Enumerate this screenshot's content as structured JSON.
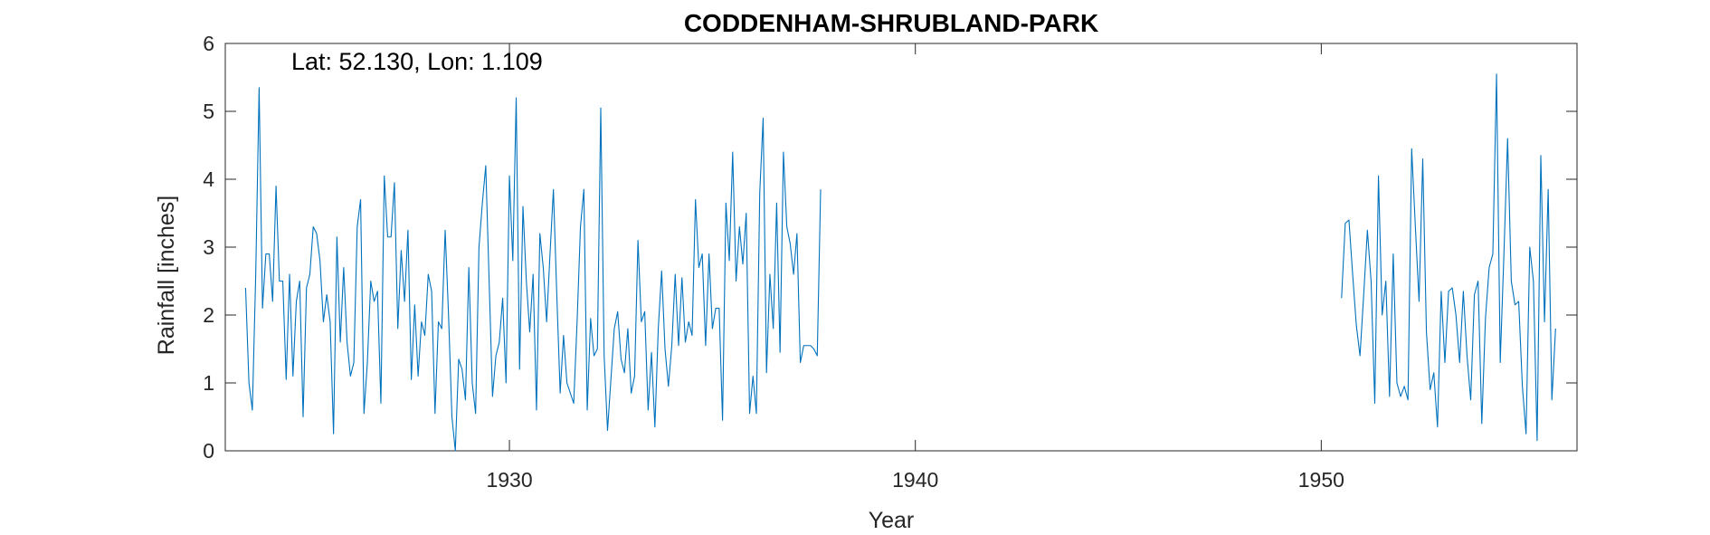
{
  "chart_data": {
    "type": "line",
    "title": "CODDENHAM-SHRUBLAND-PARK",
    "annotation": "Lat: 52.130, Lon: 1.109",
    "xlabel": "Year",
    "ylabel": "Rainfall [inches]",
    "xlim": [
      1923.0,
      1956.3
    ],
    "ylim": [
      0,
      6
    ],
    "xticks": [
      1930,
      1940,
      1950
    ],
    "xtick_labels": [
      "1930",
      "1940",
      "1950"
    ],
    "yticks": [
      0,
      1,
      2,
      3,
      4,
      5,
      6
    ],
    "ytick_labels": [
      "0",
      "1",
      "2",
      "3",
      "4",
      "5",
      "6"
    ],
    "grid": false,
    "line_color": "#0072BD",
    "series": [
      {
        "segments": [
          {
            "x_start": 1923.5,
            "dx": 0.083333,
            "values": [
              2.4,
              1.0,
              0.6,
              2.6,
              5.35,
              2.1,
              2.9,
              2.9,
              2.2,
              3.9,
              2.5,
              2.5,
              1.05,
              2.6,
              1.1,
              2.2,
              2.5,
              0.5,
              2.4,
              2.6,
              3.3,
              3.2,
              2.8,
              1.9,
              2.3,
              1.9,
              0.25,
              3.15,
              1.6,
              2.7,
              1.6,
              1.1,
              1.3,
              3.3,
              3.7,
              0.55,
              1.3,
              2.5,
              2.2,
              2.35,
              0.7,
              4.05,
              3.15,
              3.15,
              3.95,
              1.8,
              2.95,
              2.2,
              3.25,
              1.05,
              2.15,
              1.1,
              1.9,
              1.7,
              2.6,
              2.35,
              0.55,
              1.9,
              1.8,
              3.25,
              2.0,
              0.5,
              0.0,
              1.35,
              1.2,
              0.75,
              2.7,
              1.0,
              0.55,
              3.0,
              3.65,
              4.2,
              2.5,
              0.8,
              1.4,
              1.6,
              2.25,
              1.0,
              4.05,
              2.8,
              5.2,
              1.2,
              3.6,
              2.5,
              1.75,
              2.6,
              0.6,
              3.2,
              2.7,
              1.9,
              2.9,
              3.85,
              2.3,
              0.85,
              1.7,
              1.0,
              0.85,
              0.7,
              1.9,
              3.3,
              3.85,
              0.6,
              1.95,
              1.4,
              1.5,
              5.05,
              1.4,
              0.3,
              1.05,
              1.8,
              2.05,
              1.35,
              1.15,
              1.8,
              0.85,
              1.1,
              3.1,
              1.9,
              2.05,
              0.6,
              1.45,
              0.35,
              1.8,
              2.65,
              1.5,
              0.95,
              1.55,
              2.6,
              1.55,
              2.55,
              1.6,
              1.9,
              1.7,
              3.7,
              2.7,
              2.9,
              1.55,
              2.9,
              1.8,
              2.1,
              2.1,
              0.45,
              3.65,
              2.8,
              4.4,
              2.5,
              3.3,
              2.75,
              3.5,
              0.55,
              1.1,
              0.55,
              3.8,
              4.9,
              1.15,
              2.6,
              1.8,
              3.65,
              1.45,
              4.4,
              3.3,
              3.05,
              2.6,
              3.2,
              1.3,
              1.55,
              1.55,
              1.55,
              1.5,
              1.4,
              3.85
            ]
          },
          {
            "x_start": 1950.5,
            "dx": 0.0909,
            "values": [
              2.25,
              3.35,
              3.4,
              2.6,
              1.85,
              1.4,
              2.3,
              3.25,
              2.5,
              0.7,
              4.05,
              2.0,
              2.5,
              0.8,
              2.9,
              1.0,
              0.8,
              0.95,
              0.75,
              4.45,
              3.3,
              2.2,
              4.3,
              1.75,
              0.9,
              1.15,
              0.35,
              2.35,
              1.3,
              2.35,
              2.4,
              2.0,
              1.3,
              2.35,
              1.4,
              0.75,
              2.3,
              2.5,
              0.4,
              1.95,
              2.7,
              2.9,
              5.55,
              1.3,
              2.9,
              4.6,
              2.5,
              2.15,
              2.2,
              0.95,
              0.25,
              3.0,
              2.5,
              0.15,
              4.35,
              1.9,
              3.85,
              0.75,
              1.8
            ]
          }
        ]
      }
    ]
  }
}
